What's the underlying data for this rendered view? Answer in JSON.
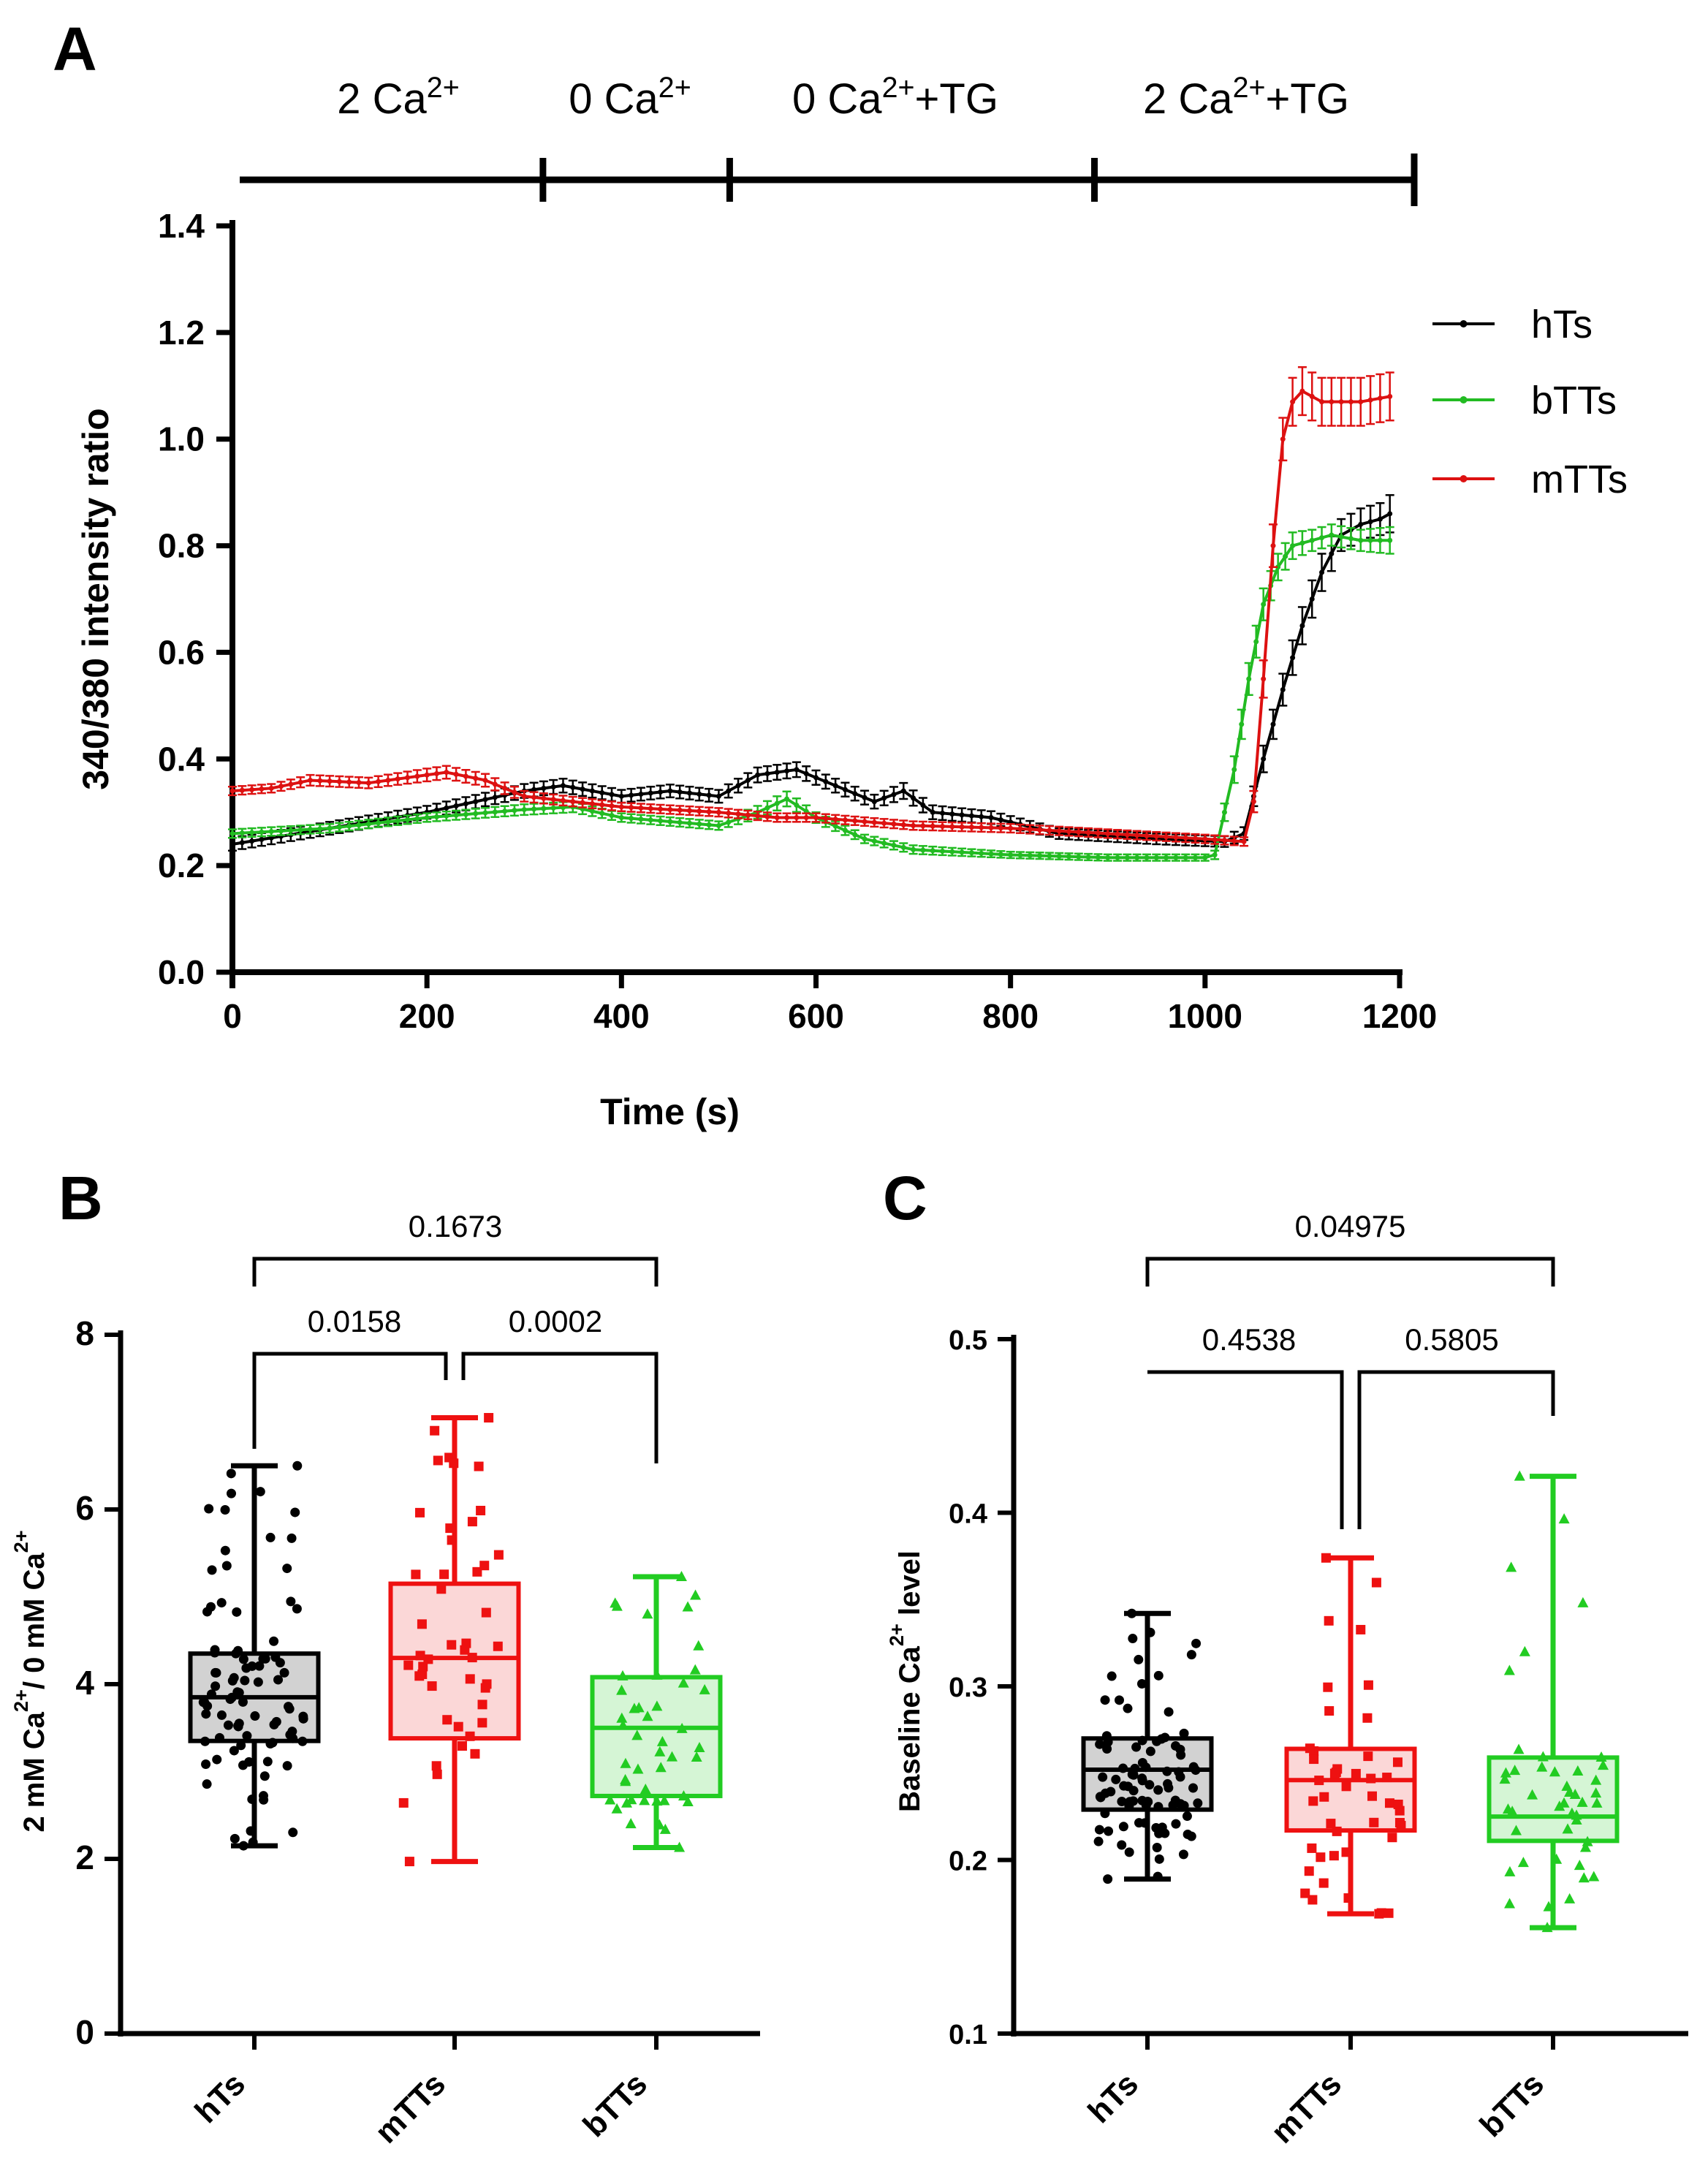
{
  "chart_data": [
    {
      "panel": "A",
      "type": "line",
      "xlabel": "Time (s)",
      "ylabel": "340/380 intensity ratio",
      "xlim": [
        0,
        1200
      ],
      "ylim": [
        0,
        1.4
      ],
      "xticks": [
        "0",
        "200",
        "400",
        "600",
        "800",
        "1000",
        "1200"
      ],
      "yticks": [
        "0.0",
        "0.2",
        "0.4",
        "0.6",
        "0.8",
        "1.0",
        "1.2",
        "1.4"
      ],
      "phases": [
        {
          "base": "2 Ca",
          "sup": "2+",
          "tail": "",
          "start": 0,
          "end": 308
        },
        {
          "base": "0 Ca",
          "sup": "2+",
          "tail": "",
          "start": 308,
          "end": 500
        },
        {
          "base": "0 Ca",
          "sup": "2+",
          "tail": "+TG",
          "start": 500,
          "end": 875
        },
        {
          "base": "2 Ca",
          "sup": "2+",
          "tail": "+TG",
          "start": 875,
          "end": 1205
        }
      ],
      "series": [
        {
          "name": "hTs",
          "color": "#000000",
          "x": [
            0,
            100,
            200,
            300,
            340,
            400,
            450,
            500,
            540,
            580,
            620,
            660,
            690,
            720,
            780,
            850,
            950,
            1020,
            1040,
            1060,
            1080,
            1100,
            1120,
            1140,
            1160,
            1180,
            1190
          ],
          "y": [
            0.24,
            0.27,
            0.3,
            0.34,
            0.35,
            0.33,
            0.34,
            0.33,
            0.37,
            0.38,
            0.35,
            0.32,
            0.34,
            0.3,
            0.29,
            0.26,
            0.25,
            0.245,
            0.26,
            0.4,
            0.53,
            0.65,
            0.75,
            0.82,
            0.84,
            0.85,
            0.86
          ],
          "err": [
            0.012,
            0.012,
            0.012,
            0.013,
            0.013,
            0.012,
            0.012,
            0.012,
            0.014,
            0.014,
            0.013,
            0.013,
            0.015,
            0.013,
            0.012,
            0.01,
            0.01,
            0.01,
            0.012,
            0.025,
            0.03,
            0.035,
            0.035,
            0.03,
            0.03,
            0.03,
            0.035
          ]
        },
        {
          "name": "bTTs",
          "color": "#22bb22",
          "x": [
            0,
            100,
            200,
            300,
            350,
            400,
            500,
            540,
            570,
            600,
            650,
            700,
            800,
            900,
            1000,
            1010,
            1030,
            1045,
            1060,
            1075,
            1090,
            1110,
            1130,
            1160,
            1190
          ],
          "y": [
            0.26,
            0.27,
            0.29,
            0.305,
            0.31,
            0.29,
            0.275,
            0.3,
            0.325,
            0.29,
            0.25,
            0.23,
            0.22,
            0.215,
            0.215,
            0.22,
            0.38,
            0.55,
            0.69,
            0.76,
            0.8,
            0.81,
            0.82,
            0.81,
            0.81
          ],
          "err": [
            0.008,
            0.008,
            0.008,
            0.01,
            0.01,
            0.008,
            0.008,
            0.012,
            0.014,
            0.01,
            0.008,
            0.008,
            0.006,
            0.006,
            0.006,
            0.008,
            0.025,
            0.03,
            0.03,
            0.025,
            0.025,
            0.02,
            0.02,
            0.02,
            0.025
          ]
        },
        {
          "name": "mTTs",
          "color": "#dd1111",
          "x": [
            0,
            40,
            80,
            140,
            200,
            220,
            260,
            300,
            400,
            500,
            560,
            600,
            700,
            800,
            900,
            1000,
            1040,
            1050,
            1060,
            1070,
            1080,
            1090,
            1100,
            1120,
            1140,
            1160,
            1190
          ],
          "y": [
            0.34,
            0.345,
            0.36,
            0.355,
            0.37,
            0.375,
            0.36,
            0.33,
            0.31,
            0.3,
            0.29,
            0.29,
            0.275,
            0.27,
            0.26,
            0.25,
            0.245,
            0.32,
            0.55,
            0.8,
            1.0,
            1.07,
            1.09,
            1.07,
            1.07,
            1.07,
            1.08
          ],
          "err": [
            0.008,
            0.008,
            0.01,
            0.01,
            0.012,
            0.012,
            0.012,
            0.01,
            0.008,
            0.008,
            0.008,
            0.008,
            0.008,
            0.008,
            0.008,
            0.008,
            0.008,
            0.02,
            0.035,
            0.04,
            0.04,
            0.045,
            0.045,
            0.045,
            0.045,
            0.045,
            0.045
          ]
        }
      ]
    },
    {
      "panel": "B",
      "type": "box",
      "ylabel": {
        "a": "2 mM Ca",
        "b": "2+",
        "c": "/ 0 mM Ca",
        "d": "2+"
      },
      "ylim": [
        0,
        8
      ],
      "yticks": [
        "0",
        "2",
        "4",
        "6",
        "8"
      ],
      "categories": [
        "hTs",
        "mTTs",
        "bTTs"
      ],
      "groups": [
        {
          "name": "hTs",
          "color": "#000000",
          "fill": "#d2d2d2",
          "marker": "circle",
          "min": 2.15,
          "q1": 3.35,
          "median": 3.85,
          "q3": 4.35,
          "max": 6.5,
          "n": 90
        },
        {
          "name": "mTTs",
          "color": "#ee1111",
          "fill": "#fbd7d7",
          "marker": "square",
          "min": 1.97,
          "q1": 3.38,
          "median": 4.3,
          "q3": 5.15,
          "max": 7.05,
          "n": 45
        },
        {
          "name": "bTTs",
          "color": "#22cc22",
          "fill": "#d5f5d5",
          "marker": "triangle",
          "min": 2.13,
          "q1": 2.72,
          "median": 3.5,
          "q3": 4.08,
          "max": 5.23,
          "n": 45
        }
      ],
      "comparisons": [
        {
          "from": 0,
          "to": 1,
          "label": "0.0158"
        },
        {
          "from": 1,
          "to": 2,
          "label": "0.0002"
        },
        {
          "from": 0,
          "to": 2,
          "label": "0.1673"
        }
      ]
    },
    {
      "panel": "C",
      "type": "box",
      "ylabel": {
        "a": "Baseline Ca",
        "b": "2+",
        "c": " level",
        "d": ""
      },
      "ylim": [
        0.1,
        0.5
      ],
      "yticks": [
        "0.1",
        "0.2",
        "0.3",
        "0.4",
        "0.5"
      ],
      "categories": [
        "hTs",
        "mTTs",
        "bTTs"
      ],
      "groups": [
        {
          "name": "hTs",
          "color": "#000000",
          "fill": "#d2d2d2",
          "marker": "circle",
          "min": 0.189,
          "q1": 0.229,
          "median": 0.252,
          "q3": 0.27,
          "max": 0.342,
          "n": 90
        },
        {
          "name": "mTTs",
          "color": "#ee1111",
          "fill": "#fbd7d7",
          "marker": "square",
          "min": 0.169,
          "q1": 0.217,
          "median": 0.246,
          "q3": 0.264,
          "max": 0.374,
          "n": 45
        },
        {
          "name": "bTTs",
          "color": "#22cc22",
          "fill": "#d5f5d5",
          "marker": "triangle",
          "min": 0.161,
          "q1": 0.211,
          "median": 0.225,
          "q3": 0.259,
          "max": 0.421,
          "n": 45
        }
      ],
      "comparisons": [
        {
          "from": 0,
          "to": 1,
          "label": "0.4538"
        },
        {
          "from": 1,
          "to": 2,
          "label": "0.5805"
        },
        {
          "from": 0,
          "to": 2,
          "label": "0.04975"
        }
      ]
    }
  ]
}
